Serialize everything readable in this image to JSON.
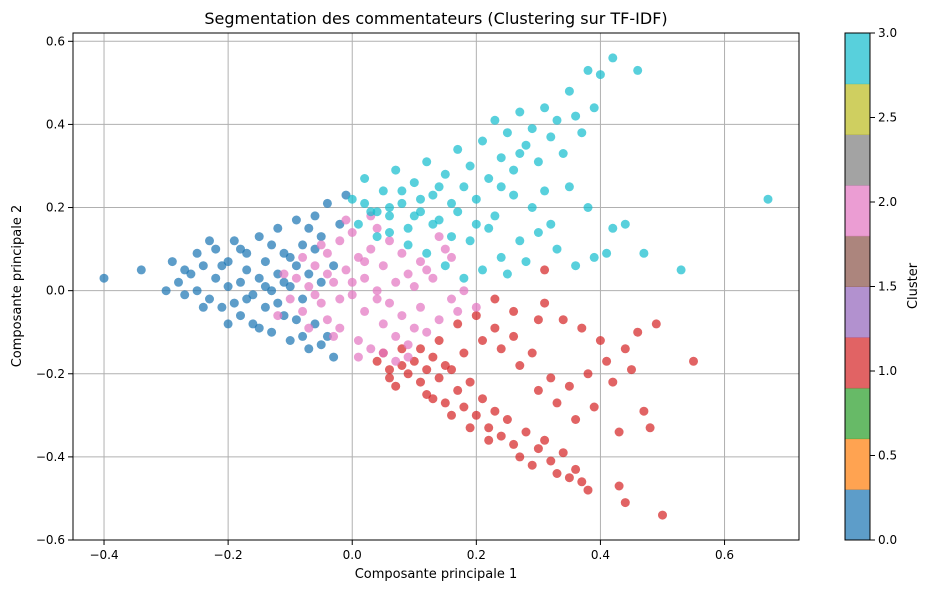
{
  "chart_data": {
    "type": "scatter",
    "title": "Segmentation des commentateurs (Clustering sur TF-IDF)",
    "xlabel": "Composante principale 1",
    "ylabel": "Composante principale 2",
    "xlim": [
      -0.45,
      0.72
    ],
    "ylim": [
      -0.6,
      0.62
    ],
    "xticks": [
      "−0.4",
      "−0.2",
      "0.0",
      "0.2",
      "0.4",
      "0.6"
    ],
    "yticks": [
      "−0.6",
      "−0.4",
      "−0.2",
      "0.0",
      "0.2",
      "0.4",
      "0.6"
    ],
    "grid": true,
    "colormap": "tab10",
    "colorbar": {
      "label": "Cluster",
      "range": [
        0,
        3
      ],
      "ticks": [
        "0.0",
        "0.5",
        "1.0",
        "1.5",
        "2.0",
        "2.5",
        "3.0"
      ],
      "colors": [
        "#1f77b4",
        "#ff7f0e",
        "#2ca02c",
        "#d62728",
        "#9467bd",
        "#8c564b",
        "#e377c2",
        "#7f7f7f",
        "#bcbd22",
        "#17becf"
      ]
    },
    "series": [
      {
        "cluster": 0,
        "color": "#1f77b4",
        "points": [
          [
            -0.4,
            0.03
          ],
          [
            -0.34,
            0.05
          ],
          [
            -0.29,
            0.07
          ],
          [
            -0.28,
            0.02
          ],
          [
            -0.27,
            -0.01
          ],
          [
            -0.26,
            0.04
          ],
          [
            -0.25,
            0.0
          ],
          [
            -0.24,
            0.06
          ],
          [
            -0.23,
            -0.02
          ],
          [
            -0.22,
            0.03
          ],
          [
            -0.22,
            0.1
          ],
          [
            -0.21,
            -0.04
          ],
          [
            -0.2,
            0.01
          ],
          [
            -0.2,
            0.07
          ],
          [
            -0.19,
            -0.03
          ],
          [
            -0.19,
            0.12
          ],
          [
            -0.18,
            0.02
          ],
          [
            -0.18,
            -0.06
          ],
          [
            -0.17,
            0.05
          ],
          [
            -0.17,
            0.09
          ],
          [
            -0.16,
            -0.01
          ],
          [
            -0.16,
            -0.08
          ],
          [
            -0.15,
            0.03
          ],
          [
            -0.15,
            0.13
          ],
          [
            -0.14,
            -0.04
          ],
          [
            -0.14,
            0.07
          ],
          [
            -0.13,
            0.0
          ],
          [
            -0.13,
            -0.1
          ],
          [
            -0.12,
            0.04
          ],
          [
            -0.12,
            0.15
          ],
          [
            -0.11,
            -0.06
          ],
          [
            -0.11,
            0.09
          ],
          [
            -0.1,
            0.01
          ],
          [
            -0.1,
            -0.12
          ],
          [
            -0.09,
            0.06
          ],
          [
            -0.09,
            0.17
          ],
          [
            -0.08,
            -0.02
          ],
          [
            -0.08,
            0.11
          ],
          [
            -0.07,
            -0.14
          ],
          [
            -0.07,
            0.04
          ],
          [
            -0.06,
            0.18
          ],
          [
            -0.06,
            -0.08
          ],
          [
            -0.05,
            0.02
          ],
          [
            -0.05,
            0.13
          ],
          [
            -0.04,
            -0.11
          ],
          [
            -0.04,
            0.21
          ],
          [
            -0.03,
            0.06
          ],
          [
            -0.03,
            -0.16
          ],
          [
            -0.02,
            0.16
          ],
          [
            -0.01,
            0.23
          ],
          [
            -0.3,
            0.0
          ],
          [
            -0.27,
            0.05
          ],
          [
            -0.24,
            -0.04
          ],
          [
            -0.21,
            0.06
          ],
          [
            -0.18,
            0.1
          ],
          [
            -0.15,
            -0.09
          ],
          [
            -0.13,
            0.11
          ],
          [
            -0.11,
            0.02
          ],
          [
            -0.09,
            -0.07
          ],
          [
            -0.06,
            0.1
          ],
          [
            -0.25,
            0.09
          ],
          [
            -0.23,
            0.12
          ],
          [
            -0.2,
            -0.08
          ],
          [
            -0.17,
            -0.02
          ],
          [
            -0.14,
            0.01
          ],
          [
            -0.12,
            -0.03
          ],
          [
            -0.1,
            0.08
          ],
          [
            -0.08,
            -0.11
          ],
          [
            -0.07,
            0.15
          ],
          [
            -0.05,
            -0.13
          ]
        ]
      },
      {
        "cluster": 1,
        "color": "#d62728",
        "points": [
          [
            0.05,
            -0.15
          ],
          [
            0.06,
            -0.19
          ],
          [
            0.07,
            -0.23
          ],
          [
            0.08,
            -0.14
          ],
          [
            0.09,
            -0.2
          ],
          [
            0.1,
            -0.17
          ],
          [
            0.11,
            -0.22
          ],
          [
            0.12,
            -0.19
          ],
          [
            0.12,
            -0.25
          ],
          [
            0.13,
            -0.16
          ],
          [
            0.14,
            -0.21
          ],
          [
            0.15,
            -0.27
          ],
          [
            0.16,
            -0.19
          ],
          [
            0.17,
            -0.24
          ],
          [
            0.18,
            -0.28
          ],
          [
            0.19,
            -0.22
          ],
          [
            0.2,
            -0.3
          ],
          [
            0.21,
            -0.26
          ],
          [
            0.22,
            -0.33
          ],
          [
            0.23,
            -0.29
          ],
          [
            0.24,
            -0.35
          ],
          [
            0.25,
            -0.31
          ],
          [
            0.26,
            -0.37
          ],
          [
            0.27,
            -0.4
          ],
          [
            0.28,
            -0.34
          ],
          [
            0.29,
            -0.42
          ],
          [
            0.3,
            -0.38
          ],
          [
            0.31,
            -0.36
          ],
          [
            0.32,
            -0.41
          ],
          [
            0.33,
            -0.44
          ],
          [
            0.34,
            -0.39
          ],
          [
            0.35,
            -0.45
          ],
          [
            0.36,
            -0.43
          ],
          [
            0.37,
            -0.46
          ],
          [
            0.38,
            -0.48
          ],
          [
            0.43,
            -0.47
          ],
          [
            0.44,
            -0.51
          ],
          [
            0.5,
            -0.54
          ],
          [
            0.55,
            -0.17
          ],
          [
            0.47,
            -0.29
          ],
          [
            0.43,
            -0.34
          ],
          [
            0.48,
            -0.33
          ],
          [
            0.46,
            -0.1
          ],
          [
            0.49,
            -0.08
          ],
          [
            0.23,
            -0.02
          ],
          [
            0.26,
            -0.05
          ],
          [
            0.31,
            -0.03
          ],
          [
            0.34,
            -0.07
          ],
          [
            0.37,
            -0.09
          ],
          [
            0.4,
            -0.12
          ],
          [
            0.44,
            -0.14
          ],
          [
            0.41,
            -0.17
          ],
          [
            0.38,
            -0.2
          ],
          [
            0.35,
            -0.23
          ],
          [
            0.32,
            -0.21
          ],
          [
            0.29,
            -0.15
          ],
          [
            0.26,
            -0.11
          ],
          [
            0.23,
            -0.09
          ],
          [
            0.2,
            -0.06
          ],
          [
            0.17,
            -0.08
          ],
          [
            0.14,
            -0.12
          ],
          [
            0.11,
            -0.14
          ],
          [
            0.08,
            -0.18
          ],
          [
            0.06,
            -0.21
          ],
          [
            0.04,
            -0.17
          ],
          [
            0.13,
            -0.26
          ],
          [
            0.16,
            -0.3
          ],
          [
            0.19,
            -0.33
          ],
          [
            0.22,
            -0.36
          ],
          [
            0.42,
            -0.22
          ],
          [
            0.45,
            -0.19
          ],
          [
            0.39,
            -0.28
          ],
          [
            0.36,
            -0.31
          ],
          [
            0.33,
            -0.27
          ],
          [
            0.3,
            -0.24
          ],
          [
            0.27,
            -0.18
          ],
          [
            0.24,
            -0.14
          ],
          [
            0.21,
            -0.12
          ],
          [
            0.18,
            -0.15
          ],
          [
            0.15,
            -0.18
          ],
          [
            0.31,
            0.05
          ],
          [
            0.3,
            -0.07
          ]
        ]
      },
      {
        "cluster": 2,
        "color": "#e377c2",
        "points": [
          [
            -0.1,
            -0.02
          ],
          [
            -0.09,
            0.03
          ],
          [
            -0.08,
            -0.05
          ],
          [
            -0.07,
            0.01
          ],
          [
            -0.06,
            0.06
          ],
          [
            -0.05,
            -0.03
          ],
          [
            -0.04,
            0.09
          ],
          [
            -0.04,
            -0.07
          ],
          [
            -0.03,
            0.02
          ],
          [
            -0.02,
            0.12
          ],
          [
            -0.02,
            -0.09
          ],
          [
            -0.01,
            0.05
          ],
          [
            0.0,
            -0.01
          ],
          [
            0.0,
            0.14
          ],
          [
            0.01,
            -0.12
          ],
          [
            0.01,
            0.08
          ],
          [
            0.02,
            0.03
          ],
          [
            0.02,
            -0.05
          ],
          [
            0.03,
            0.1
          ],
          [
            0.03,
            -0.14
          ],
          [
            0.04,
            0.0
          ],
          [
            0.04,
            0.15
          ],
          [
            0.05,
            -0.08
          ],
          [
            0.05,
            0.06
          ],
          [
            0.06,
            -0.03
          ],
          [
            0.06,
            0.12
          ],
          [
            0.07,
            -0.11
          ],
          [
            0.07,
            0.02
          ],
          [
            0.08,
            0.09
          ],
          [
            0.08,
            -0.06
          ],
          [
            0.09,
            0.04
          ],
          [
            0.09,
            -0.13
          ],
          [
            0.1,
            0.01
          ],
          [
            0.1,
            -0.09
          ],
          [
            0.11,
            -0.04
          ],
          [
            0.12,
            -0.1
          ],
          [
            0.13,
            0.03
          ],
          [
            0.14,
            -0.07
          ],
          [
            0.15,
            0.1
          ],
          [
            0.16,
            -0.02
          ],
          [
            0.17,
            -0.05
          ],
          [
            0.18,
            0.0
          ],
          [
            0.2,
            -0.04
          ],
          [
            0.14,
            0.13
          ],
          [
            0.11,
            0.07
          ],
          [
            -0.07,
            -0.09
          ],
          [
            -0.05,
            0.11
          ],
          [
            -0.03,
            -0.11
          ],
          [
            -0.01,
            0.17
          ],
          [
            0.01,
            -0.16
          ],
          [
            0.03,
            0.18
          ],
          [
            0.05,
            -0.15
          ],
          [
            0.07,
            -0.17
          ],
          [
            0.09,
            -0.16
          ],
          [
            0.04,
            -0.02
          ],
          [
            0.02,
            0.07
          ],
          [
            0.0,
            0.02
          ],
          [
            -0.02,
            -0.02
          ],
          [
            -0.04,
            0.04
          ],
          [
            -0.06,
            -0.01
          ],
          [
            -0.08,
            0.08
          ],
          [
            -0.11,
            0.04
          ],
          [
            -0.12,
            -0.06
          ],
          [
            0.12,
            0.05
          ],
          [
            0.16,
            0.08
          ]
        ]
      },
      {
        "cluster": 3,
        "color": "#17becf",
        "points": [
          [
            0.0,
            0.22
          ],
          [
            0.01,
            0.16
          ],
          [
            0.02,
            0.27
          ],
          [
            0.03,
            0.19
          ],
          [
            0.04,
            0.13
          ],
          [
            0.05,
            0.24
          ],
          [
            0.06,
            0.18
          ],
          [
            0.07,
            0.29
          ],
          [
            0.08,
            0.21
          ],
          [
            0.09,
            0.15
          ],
          [
            0.1,
            0.26
          ],
          [
            0.11,
            0.19
          ],
          [
            0.12,
            0.31
          ],
          [
            0.13,
            0.23
          ],
          [
            0.14,
            0.17
          ],
          [
            0.15,
            0.28
          ],
          [
            0.16,
            0.21
          ],
          [
            0.17,
            0.34
          ],
          [
            0.18,
            0.25
          ],
          [
            0.19,
            0.3
          ],
          [
            0.2,
            0.22
          ],
          [
            0.21,
            0.36
          ],
          [
            0.22,
            0.27
          ],
          [
            0.23,
            0.41
          ],
          [
            0.24,
            0.32
          ],
          [
            0.25,
            0.38
          ],
          [
            0.26,
            0.29
          ],
          [
            0.27,
            0.43
          ],
          [
            0.28,
            0.35
          ],
          [
            0.29,
            0.39
          ],
          [
            0.3,
            0.31
          ],
          [
            0.31,
            0.44
          ],
          [
            0.32,
            0.37
          ],
          [
            0.33,
            0.41
          ],
          [
            0.34,
            0.33
          ],
          [
            0.35,
            0.48
          ],
          [
            0.36,
            0.42
          ],
          [
            0.37,
            0.38
          ],
          [
            0.38,
            0.53
          ],
          [
            0.39,
            0.44
          ],
          [
            0.4,
            0.52
          ],
          [
            0.42,
            0.56
          ],
          [
            0.44,
            0.16
          ],
          [
            0.46,
            0.53
          ],
          [
            0.47,
            0.09
          ],
          [
            0.53,
            0.05
          ],
          [
            0.67,
            0.22
          ],
          [
            0.39,
            0.08
          ],
          [
            0.36,
            0.06
          ],
          [
            0.33,
            0.1
          ],
          [
            0.3,
            0.14
          ],
          [
            0.27,
            0.12
          ],
          [
            0.24,
            0.08
          ],
          [
            0.21,
            0.05
          ],
          [
            0.18,
            0.03
          ],
          [
            0.15,
            0.06
          ],
          [
            0.12,
            0.09
          ],
          [
            0.09,
            0.11
          ],
          [
            0.06,
            0.14
          ],
          [
            0.25,
            0.04
          ],
          [
            0.28,
            0.07
          ],
          [
            0.22,
            0.15
          ],
          [
            0.19,
            0.12
          ],
          [
            0.16,
            0.13
          ],
          [
            0.13,
            0.16
          ],
          [
            0.1,
            0.18
          ],
          [
            0.08,
            0.24
          ],
          [
            0.06,
            0.2
          ],
          [
            0.04,
            0.19
          ],
          [
            0.02,
            0.21
          ],
          [
            0.32,
            0.16
          ],
          [
            0.35,
            0.25
          ],
          [
            0.38,
            0.2
          ],
          [
            0.41,
            0.09
          ],
          [
            0.42,
            0.15
          ],
          [
            0.29,
            0.2
          ],
          [
            0.26,
            0.23
          ],
          [
            0.23,
            0.18
          ],
          [
            0.2,
            0.16
          ],
          [
            0.17,
            0.19
          ],
          [
            0.14,
            0.25
          ],
          [
            0.11,
            0.22
          ],
          [
            0.31,
            0.24
          ],
          [
            0.27,
            0.33
          ],
          [
            0.24,
            0.25
          ]
        ]
      }
    ]
  }
}
